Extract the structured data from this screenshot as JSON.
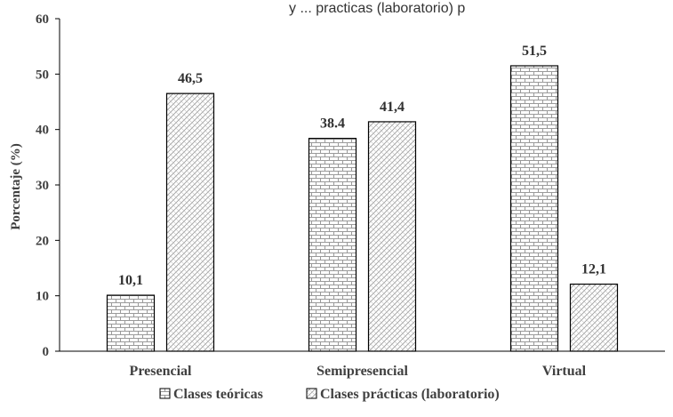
{
  "chart_data": {
    "type": "bar",
    "title": "y ... practicas (laboratorio) p",
    "categories": [
      "Presencial",
      "Semipresencial",
      "Virtual"
    ],
    "series": [
      {
        "name": "Clases teóricas",
        "values": [
          10.1,
          38.4,
          51.5
        ],
        "labels": [
          "10,1",
          "38.4",
          "51,5"
        ],
        "pattern": "brick"
      },
      {
        "name": "Clases prácticas (laboratorio)",
        "values": [
          46.5,
          41.4,
          12.1
        ],
        "labels": [
          "46,5",
          "41,4",
          "12,1"
        ],
        "pattern": "diagonal-hatch"
      }
    ],
    "ylabel": "Porcentaje (%)",
    "xlabel": "",
    "ylim": [
      0,
      60
    ],
    "yticks": [
      0,
      10,
      20,
      30,
      40,
      50,
      60
    ],
    "grid": false,
    "legend_position": "bottom",
    "colors": {
      "bar_stroke": "#000000",
      "pattern_line": "#9a9a9a",
      "axis": "#000000"
    }
  }
}
